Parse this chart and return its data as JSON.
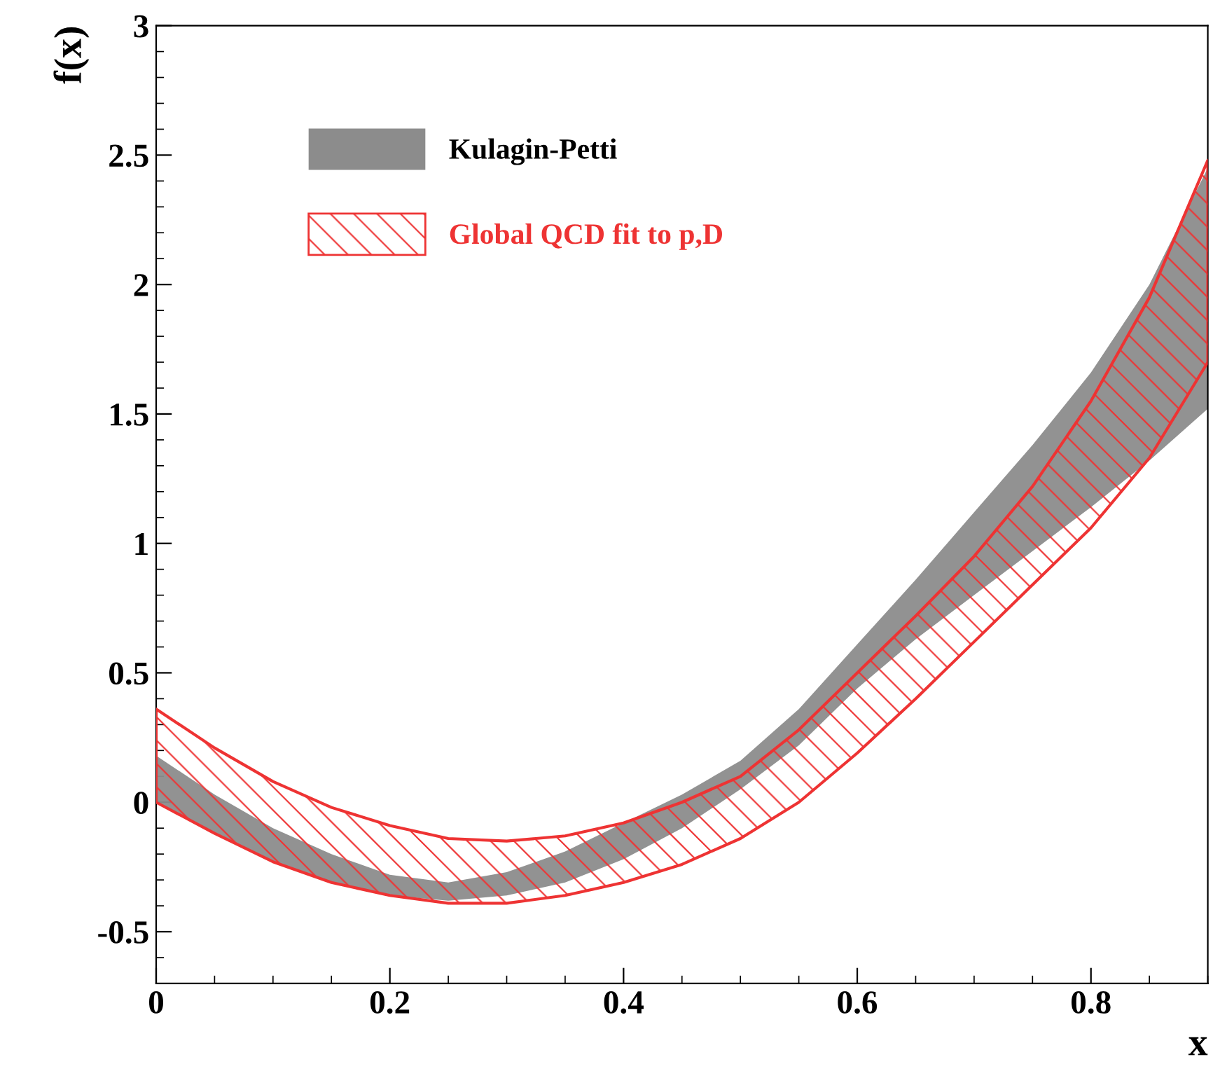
{
  "chart_data": {
    "type": "line",
    "xlabel": "x",
    "ylabel": "f(x)",
    "x": [
      0,
      0.05,
      0.1,
      0.15,
      0.2,
      0.25,
      0.3,
      0.35,
      0.4,
      0.45,
      0.5,
      0.55,
      0.6,
      0.65,
      0.7,
      0.75,
      0.8,
      0.85,
      0.9
    ],
    "series": [
      {
        "name": "Kulagin-Petti",
        "color": "#8c8c8c",
        "values": [
          null,
          null,
          null,
          null,
          null,
          null,
          null,
          null,
          null,
          null,
          null,
          null,
          null,
          null,
          null,
          null,
          null,
          null,
          null
        ],
        "lower": [
          0.0,
          -0.12,
          -0.23,
          -0.31,
          -0.36,
          -0.38,
          -0.36,
          -0.31,
          -0.22,
          -0.1,
          0.05,
          0.22,
          0.44,
          0.63,
          0.8,
          0.97,
          1.14,
          1.32,
          1.52
        ],
        "upper": [
          0.18,
          0.03,
          -0.1,
          -0.2,
          -0.28,
          -0.31,
          -0.27,
          -0.19,
          -0.08,
          0.03,
          0.16,
          0.36,
          0.61,
          0.86,
          1.12,
          1.38,
          1.66,
          2.0,
          2.45
        ]
      },
      {
        "name": "Global QCD fit to p,D",
        "color": "#ee3333",
        "values": [
          null,
          null,
          null,
          null,
          null,
          null,
          null,
          null,
          null,
          null,
          null,
          null,
          null,
          null,
          null,
          null,
          null,
          null,
          null
        ],
        "lower": [
          0.0,
          -0.12,
          -0.23,
          -0.31,
          -0.36,
          -0.39,
          -0.39,
          -0.36,
          -0.31,
          -0.24,
          -0.14,
          0.0,
          0.19,
          0.4,
          0.62,
          0.84,
          1.06,
          1.33,
          1.7
        ],
        "upper": [
          0.36,
          0.21,
          0.08,
          -0.02,
          -0.09,
          -0.14,
          -0.15,
          -0.13,
          -0.08,
          0.0,
          0.1,
          0.28,
          0.5,
          0.72,
          0.95,
          1.22,
          1.55,
          1.95,
          2.48
        ]
      }
    ],
    "xlim": [
      0,
      0.9
    ],
    "ylim": [
      -0.7,
      3
    ],
    "xticks": [
      0,
      0.2,
      0.4,
      0.6,
      0.8
    ],
    "yticks": [
      -0.5,
      0,
      0.5,
      1,
      1.5,
      2,
      2.5,
      3
    ],
    "legend": "top left",
    "grid": false
  }
}
